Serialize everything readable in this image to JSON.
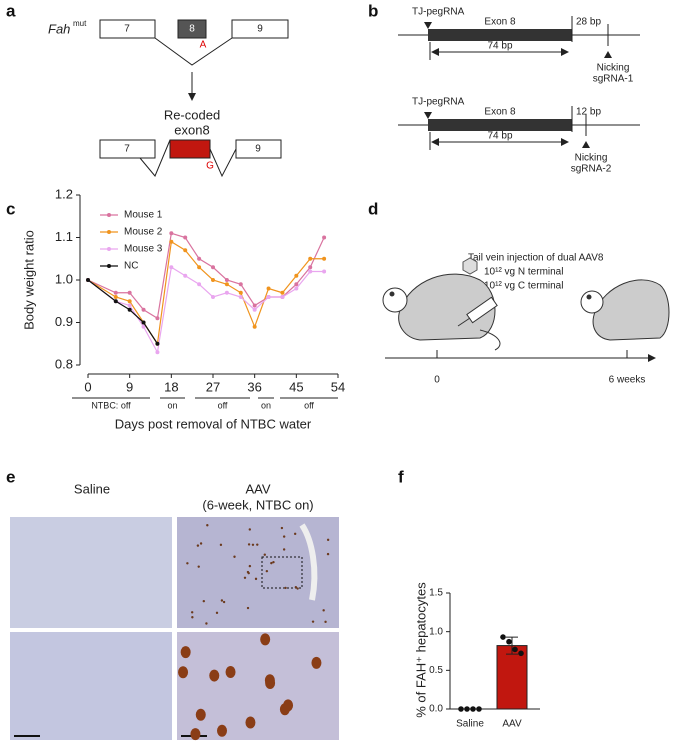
{
  "panel_labels": [
    "a",
    "b",
    "c",
    "d",
    "e",
    "f"
  ],
  "panel_a": {
    "gene": "Fah",
    "gene_sup": "mut",
    "exons_top": [
      "7",
      "8",
      "9"
    ],
    "mutation": "A",
    "recoded": [
      "Re-coded",
      "exon8"
    ],
    "exons_bottom": [
      "7",
      "9"
    ],
    "correction": "G"
  },
  "panel_b": {
    "diagrams": [
      {
        "peg": "TJ-pegRNA",
        "exon": "Exon 8",
        "gap": "28 bp",
        "span": "74 bp",
        "nick": [
          "Nicking",
          "sgRNA-1"
        ]
      },
      {
        "peg": "TJ-pegRNA",
        "exon": "Exon 8",
        "gap": "12 bp",
        "span": "74 bp",
        "nick": [
          "Nicking",
          "sgRNA-2"
        ]
      }
    ]
  },
  "panel_d": {
    "injection": "Tail vein injection of dual AAV8",
    "doses": [
      "10¹² vg N terminal",
      "10¹² vg C terminal"
    ],
    "timeline": [
      "0",
      "6 weeks"
    ]
  },
  "panel_e": {
    "titles": [
      "Saline",
      "AAV"
    ],
    "subtitle": "(6-week, NTBC on)"
  },
  "chart_data": [
    {
      "type": "line",
      "ylabel": "Body weight ratio",
      "xlabel": "Days post removal of NTBC water",
      "xlim": [
        0,
        54
      ],
      "xticks": [
        0,
        9,
        18,
        27,
        36,
        45,
        54
      ],
      "ylim": [
        0.8,
        1.2
      ],
      "yticks": [
        {
          "value": 0.8,
          "label": "0.8"
        },
        {
          "value": 0.9,
          "label": "0.9"
        },
        {
          "value": 1.0,
          "label": "1.0"
        },
        {
          "value": 1.1,
          "label": "1.1"
        },
        {
          "value": 1.2,
          "label": "1.2"
        }
      ],
      "ntbc": [
        "NTBC: off",
        "on",
        "off",
        "on",
        "off"
      ],
      "legend": "upper left",
      "series": [
        {
          "name": "Mouse 1",
          "color": "#d9739f",
          "x": [
            0,
            6,
            9,
            12,
            15,
            18,
            21,
            24,
            27,
            30,
            33,
            36,
            39,
            42,
            45,
            48,
            51
          ],
          "values": [
            1.0,
            0.97,
            0.97,
            0.93,
            0.91,
            1.11,
            1.1,
            1.05,
            1.03,
            1.0,
            0.99,
            0.94,
            0.96,
            0.96,
            0.99,
            1.03,
            1.1
          ]
        },
        {
          "name": "Mouse 2",
          "color": "#f0941e",
          "x": [
            0,
            6,
            9,
            12,
            15,
            18,
            21,
            24,
            27,
            30,
            33,
            36,
            39,
            42,
            45,
            48,
            51
          ],
          "values": [
            1.0,
            0.96,
            0.95,
            0.9,
            0.85,
            1.09,
            1.07,
            1.03,
            1.0,
            0.99,
            0.97,
            0.89,
            0.98,
            0.97,
            1.01,
            1.05,
            1.05
          ]
        },
        {
          "name": "Mouse 3",
          "color": "#e9a6ef",
          "x": [
            0,
            6,
            9,
            12,
            15,
            18,
            21,
            24,
            27,
            30,
            33,
            36,
            39,
            42,
            45,
            48,
            51
          ],
          "values": [
            1.0,
            0.95,
            0.94,
            0.89,
            0.83,
            1.03,
            1.01,
            0.99,
            0.96,
            0.97,
            0.96,
            0.93,
            0.96,
            0.96,
            0.98,
            1.02,
            1.02
          ]
        },
        {
          "name": "NC",
          "color": "#111111",
          "x": [
            0,
            6,
            9,
            12,
            15
          ],
          "values": [
            1.0,
            0.95,
            0.93,
            0.9,
            0.85
          ]
        }
      ]
    },
    {
      "type": "bar",
      "ylabel": "% of FAH⁺ hepatocytes",
      "categories": [
        "Saline",
        "AAV"
      ],
      "values": [
        0,
        0.82
      ],
      "errors": [
        0,
        0.11
      ],
      "points": [
        [
          0,
          0,
          0,
          0
        ],
        [
          0.93,
          0.87,
          0.77,
          0.72
        ]
      ],
      "color": "#c1170f",
      "ylim": [
        0,
        1.5
      ],
      "yticks": [
        {
          "value": 0,
          "label": "0.0"
        },
        {
          "value": 0.5,
          "label": "0.5"
        },
        {
          "value": 1.0,
          "label": "1.0"
        },
        {
          "value": 1.5,
          "label": "1.5"
        }
      ]
    }
  ]
}
